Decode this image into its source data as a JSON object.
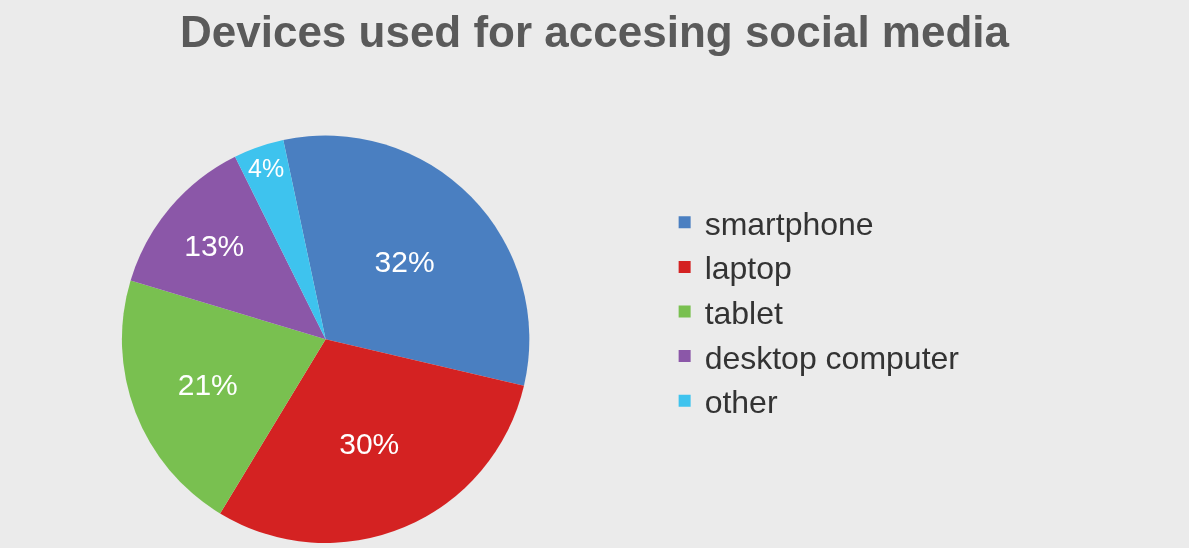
{
  "chart_data": {
    "type": "pie",
    "title": "Devices used for accesing social media",
    "categories": [
      "smartphone",
      "laptop",
      "tablet",
      "desktop computer",
      "other"
    ],
    "values": [
      32,
      30,
      21,
      13,
      4
    ],
    "value_labels": [
      "32%",
      "30%",
      "21%",
      "13%",
      "4%"
    ],
    "colors": [
      "#4a7fc1",
      "#d42222",
      "#79c050",
      "#8b57a8",
      "#3ec3ee"
    ],
    "legend": "right"
  }
}
